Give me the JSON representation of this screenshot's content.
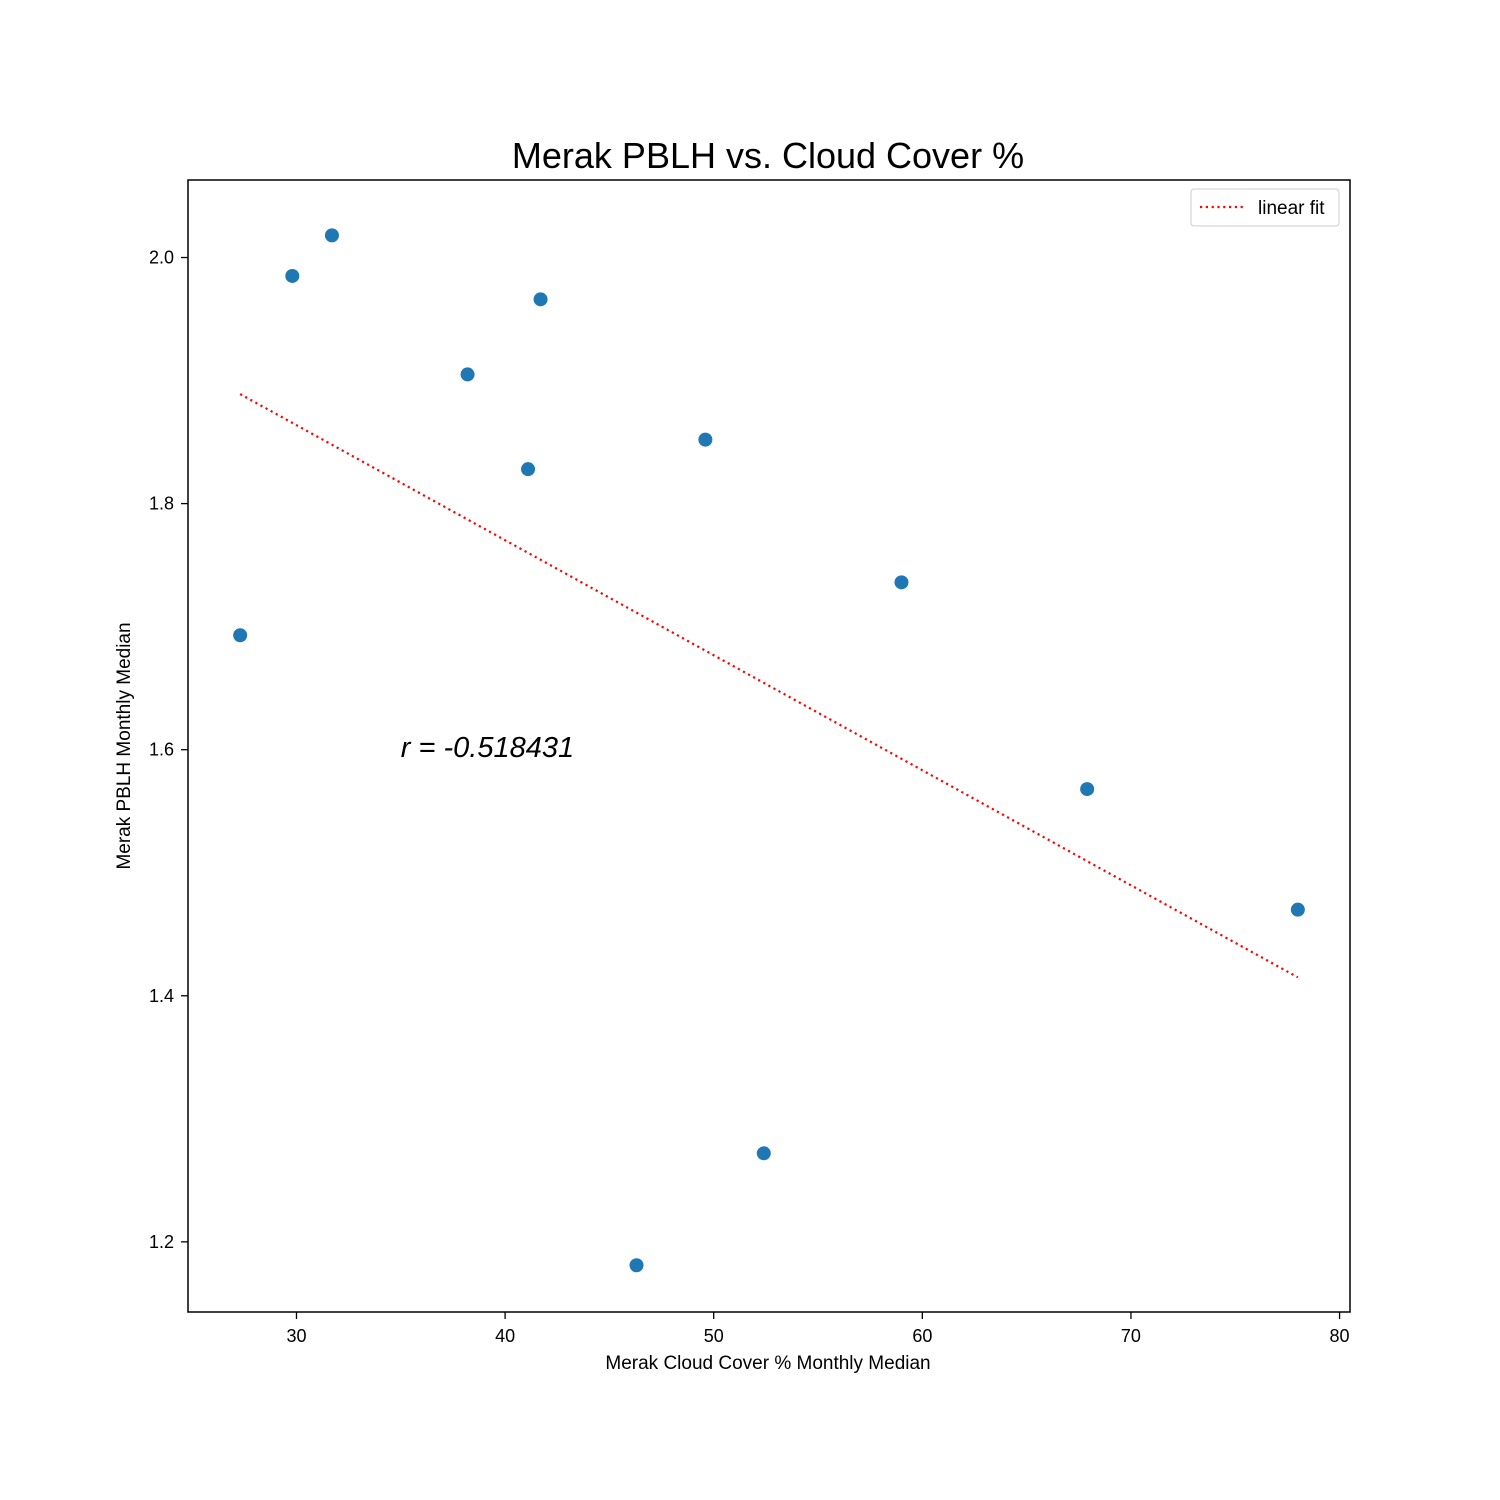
{
  "chart_data": {
    "type": "scatter",
    "title": "Merak PBLH vs. Cloud Cover %",
    "xlabel": "Merak Cloud Cover % Monthly Median",
    "ylabel": "Merak PBLH Monthly Median",
    "xlim": [
      24.8,
      80.5
    ],
    "ylim": [
      1.143,
      2.063
    ],
    "x_ticks": [
      30,
      40,
      50,
      60,
      70,
      80
    ],
    "x_tick_labels": [
      "30",
      "40",
      "50",
      "60",
      "70",
      "80"
    ],
    "y_ticks": [
      1.2,
      1.4,
      1.6,
      1.8,
      2.0
    ],
    "y_tick_labels": [
      "1.2",
      "1.4",
      "1.6",
      "1.8",
      "2.0"
    ],
    "grid": false,
    "legend_position": "top-right",
    "series": [
      {
        "type": "scatter",
        "color": "#1f77b4",
        "points": [
          {
            "x": 27.3,
            "y": 1.693
          },
          {
            "x": 29.8,
            "y": 1.985
          },
          {
            "x": 31.7,
            "y": 2.018
          },
          {
            "x": 38.2,
            "y": 1.905
          },
          {
            "x": 41.1,
            "y": 1.828
          },
          {
            "x": 41.7,
            "y": 1.966
          },
          {
            "x": 46.3,
            "y": 1.181
          },
          {
            "x": 49.6,
            "y": 1.852
          },
          {
            "x": 52.4,
            "y": 1.272
          },
          {
            "x": 59.0,
            "y": 1.736
          },
          {
            "x": 67.9,
            "y": 1.568
          },
          {
            "x": 78.0,
            "y": 1.47
          }
        ]
      },
      {
        "name": "linear fit",
        "type": "line",
        "style": "dotted",
        "color": "#ff0000",
        "points": [
          {
            "x": 27.3,
            "y": 1.889
          },
          {
            "x": 78.0,
            "y": 1.415
          }
        ]
      }
    ],
    "annotations": [
      {
        "text": "r = -0.518431",
        "x": 35.0,
        "y": 1.602
      }
    ]
  }
}
